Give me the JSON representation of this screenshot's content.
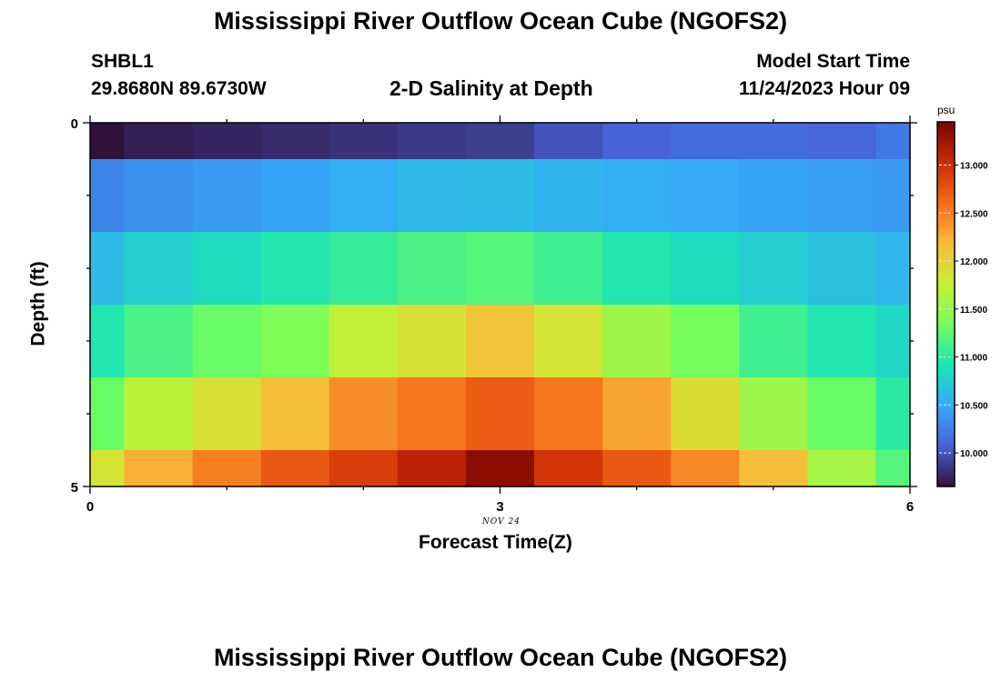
{
  "page": {
    "title_top": "Mississippi River Outflow Ocean Cube (NGOFS2)",
    "title_bottom": "Mississippi River Outflow Ocean Cube (NGOFS2)",
    "station_id": "SHBL1",
    "station_coords": "29.8680N  89.6730W",
    "plot_subtitle": "2-D Salinity at Depth",
    "model_start_label": "Model Start Time",
    "model_start_value": "11/24/2023 Hour 09",
    "date_note": "NOV 24"
  },
  "chart_data": {
    "type": "heatmap",
    "title": "2-D Salinity at Depth",
    "xlabel": "Forecast Time(Z)",
    "ylabel": "Depth (ft)",
    "x_ticks": [
      "0",
      "3",
      "6"
    ],
    "y_ticks": [
      "0",
      "5"
    ],
    "xlim": [
      0,
      6
    ],
    "ylim": [
      0,
      5
    ],
    "x_edges": [
      0,
      0.25,
      0.75,
      1.25,
      1.75,
      2.25,
      2.75,
      3.25,
      3.75,
      4.25,
      4.75,
      5.25,
      5.75,
      6
    ],
    "y_edges": [
      0,
      0.5,
      1.5,
      2.5,
      3.5,
      4.5,
      5
    ],
    "values": [
      [
        9.65,
        9.72,
        9.75,
        9.78,
        9.82,
        9.86,
        9.88,
        10.0,
        10.08,
        10.13,
        10.13,
        10.1,
        10.2
      ],
      [
        10.28,
        10.35,
        10.4,
        10.45,
        10.52,
        10.6,
        10.62,
        10.55,
        10.52,
        10.48,
        10.45,
        10.42,
        10.4
      ],
      [
        10.62,
        10.75,
        10.85,
        10.95,
        11.05,
        11.15,
        11.2,
        11.1,
        10.95,
        10.85,
        10.75,
        10.65,
        10.58
      ],
      [
        10.95,
        11.15,
        11.3,
        11.4,
        11.72,
        11.88,
        12.1,
        11.85,
        11.55,
        11.35,
        11.1,
        10.95,
        10.82
      ],
      [
        11.3,
        11.7,
        11.9,
        12.15,
        12.42,
        12.55,
        12.7,
        12.55,
        12.3,
        11.92,
        11.55,
        11.3,
        11.0
      ],
      [
        11.85,
        12.25,
        12.5,
        12.72,
        12.9,
        13.1,
        13.35,
        12.95,
        12.72,
        12.45,
        12.15,
        11.6,
        11.2
      ]
    ],
    "colorbar": {
      "unit": "psu",
      "min": 9.65,
      "max": 13.45,
      "ticks": [
        10.0,
        10.5,
        11.0,
        11.5,
        12.0,
        12.5,
        13.0
      ],
      "tick_labels": [
        "10.000",
        "10.500",
        "11.000",
        "11.500",
        "12.000",
        "12.500",
        "13.000"
      ],
      "colormap": [
        "#30123b",
        "#4662d7",
        "#35abf8",
        "#1ae4b6",
        "#72fe5e",
        "#c8ef34",
        "#faba39",
        "#f66b19",
        "#ca2a04",
        "#7a0403"
      ]
    },
    "grid": false,
    "legend": "colorbar-right"
  }
}
